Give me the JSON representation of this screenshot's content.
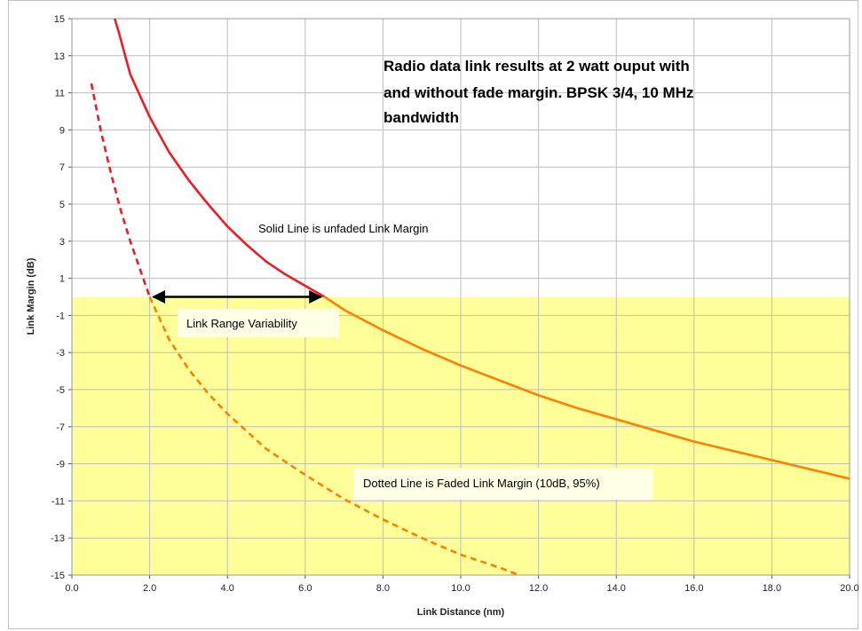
{
  "chart_data": {
    "type": "line",
    "title_lines": [
      "Radio data link results at 2 watt ouput with",
      "and without fade margin. BPSK 3/4, 10 MHz",
      "bandwidth"
    ],
    "xlabel": "Link Distance (nm)",
    "ylabel": "Link Margin (dB)",
    "xlim": [
      0,
      20
    ],
    "ylim": [
      -15,
      15
    ],
    "x_ticks": [
      "0.0",
      "2.0",
      "4.0",
      "6.0",
      "8.0",
      "10.0",
      "12.0",
      "14.0",
      "16.0",
      "18.0",
      "20.0"
    ],
    "y_ticks": [
      "-15",
      "-13",
      "-11",
      "-9",
      "-7",
      "-5",
      "-3",
      "-1",
      "1",
      "3",
      "5",
      "7",
      "9",
      "11",
      "13",
      "15"
    ],
    "grid": true,
    "shaded_region": {
      "y_from": -15,
      "y_to": 0,
      "color": "#ffff99"
    },
    "series": [
      {
        "style": "solid",
        "color_above_zero": "#ee1c25",
        "color_below_zero": "#ff7f00",
        "points": [
          [
            1.1,
            15.0
          ],
          [
            1.2,
            14.3
          ],
          [
            1.5,
            12.0
          ],
          [
            2.0,
            9.7
          ],
          [
            2.5,
            7.8
          ],
          [
            3.0,
            6.3
          ],
          [
            3.5,
            5.0
          ],
          [
            4.0,
            3.8
          ],
          [
            4.5,
            2.8
          ],
          [
            5.0,
            1.9
          ],
          [
            5.5,
            1.2
          ],
          [
            6.0,
            0.6
          ],
          [
            6.5,
            0.0
          ],
          [
            7.0,
            -0.7
          ],
          [
            8.0,
            -1.8
          ],
          [
            9.0,
            -2.8
          ],
          [
            10.0,
            -3.7
          ],
          [
            11.0,
            -4.5
          ],
          [
            12.0,
            -5.3
          ],
          [
            13.0,
            -6.0
          ],
          [
            14.0,
            -6.6
          ],
          [
            15.0,
            -7.2
          ],
          [
            16.0,
            -7.8
          ],
          [
            17.0,
            -8.3
          ],
          [
            18.0,
            -8.8
          ],
          [
            19.0,
            -9.3
          ],
          [
            20.0,
            -9.8
          ]
        ]
      },
      {
        "style": "dashed",
        "color_above_zero": "#ee1c25",
        "color_below_zero": "#ff7f00",
        "points": [
          [
            0.5,
            11.5
          ],
          [
            0.75,
            8.9
          ],
          [
            1.0,
            6.7
          ],
          [
            1.25,
            4.7
          ],
          [
            1.5,
            3.0
          ],
          [
            1.75,
            1.5
          ],
          [
            2.0,
            0.0
          ],
          [
            2.5,
            -2.3
          ],
          [
            3.0,
            -3.9
          ],
          [
            3.5,
            -5.2
          ],
          [
            4.0,
            -6.3
          ],
          [
            5.0,
            -8.2
          ],
          [
            6.0,
            -9.6
          ],
          [
            7.0,
            -10.9
          ],
          [
            8.0,
            -12.0
          ],
          [
            9.0,
            -13.0
          ],
          [
            10.0,
            -13.9
          ],
          [
            11.0,
            -14.6
          ],
          [
            11.5,
            -15.0
          ]
        ]
      }
    ],
    "annotations": {
      "solid_line": "Solid Line is unfaded Link Margin",
      "dotted_line": "Dotted Line is Faded Link Margin (10dB, 95%)",
      "range": "Link Range Variability"
    },
    "range_arrow": {
      "x_from": 2.0,
      "x_to": 6.5,
      "y": 0.0
    }
  }
}
